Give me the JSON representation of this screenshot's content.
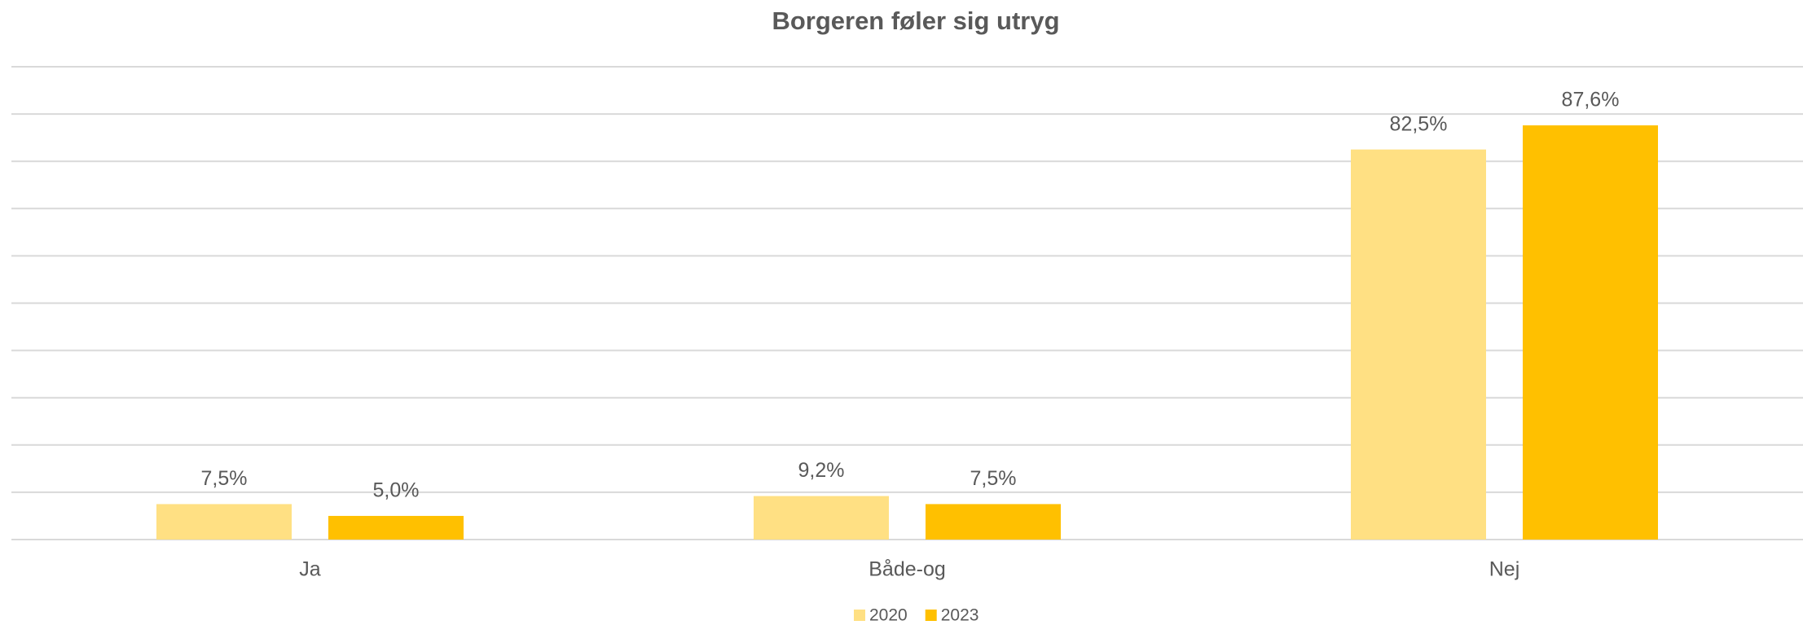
{
  "chart_data": {
    "type": "bar",
    "title": "Borgeren føler sig utryg",
    "categories": [
      "Ja",
      "Både-og",
      "Nej"
    ],
    "series": [
      {
        "name": "2020",
        "color": "#ffe083",
        "values": [
          7.5,
          9.2,
          82.5
        ],
        "value_labels": [
          "7,5%",
          "9,2%",
          "82,5%"
        ]
      },
      {
        "name": "2023",
        "color": "#ffc000",
        "values": [
          5.0,
          7.5,
          87.6
        ],
        "value_labels": [
          "5,0%",
          "7,5%",
          "87,6%"
        ]
      }
    ],
    "ylim": [
      0,
      100
    ],
    "yticks": [
      0,
      10,
      20,
      30,
      40,
      50,
      60,
      70,
      80,
      90,
      100
    ],
    "grid": true,
    "legend": "bottom"
  }
}
